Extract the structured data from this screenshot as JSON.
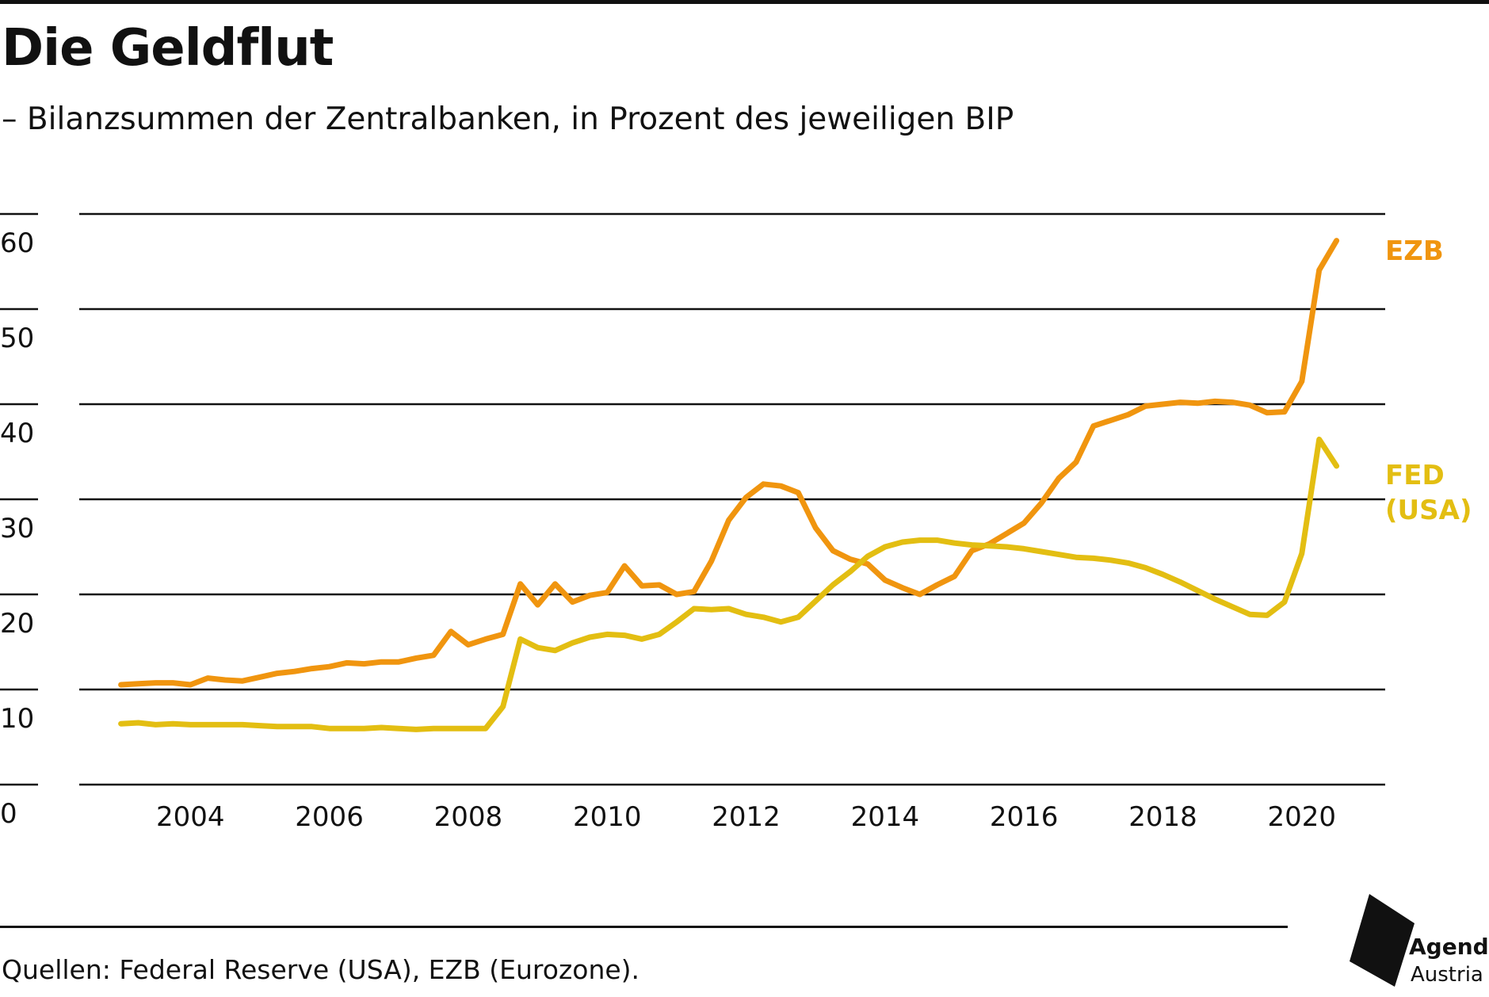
{
  "header": {
    "title": "Die Geldflut",
    "subtitle": "– Bilanzsummen der Zentralbanken, in Prozent des jeweiligen BIP"
  },
  "footer": {
    "source": "Quellen: Federal Reserve (USA), EZB (Eurozone).",
    "logo_line1": "Agenda",
    "logo_line2": "Austria"
  },
  "colors": {
    "EZB": "#F0950F",
    "FED": "#E3BE12",
    "grid": "#111111",
    "text": "#111111"
  },
  "chart_data": {
    "type": "line",
    "title": "Die Geldflut",
    "subtitle": "– Bilanzsummen der Zentralbanken, in Prozent des jeweiligen BIP",
    "xlabel": "",
    "ylabel": "",
    "xlim": [
      2002.4,
      2021.2
    ],
    "ylim": [
      0,
      60
    ],
    "grid": true,
    "y_ticks": [
      0,
      10,
      20,
      30,
      40,
      50,
      60
    ],
    "x_ticks": [
      2004,
      2006,
      2008,
      2010,
      2012,
      2014,
      2016,
      2018,
      2020
    ],
    "legend": "inline labels at line ends (right)",
    "series": [
      {
        "name": "EZB",
        "color": "#F0950F",
        "x": [
          2003.0,
          2003.25,
          2003.5,
          2003.75,
          2004.0,
          2004.25,
          2004.5,
          2004.75,
          2005.0,
          2005.25,
          2005.5,
          2005.75,
          2006.0,
          2006.25,
          2006.5,
          2006.75,
          2007.0,
          2007.25,
          2007.5,
          2007.75,
          2008.0,
          2008.25,
          2008.5,
          2008.75,
          2009.0,
          2009.25,
          2009.5,
          2009.75,
          2010.0,
          2010.25,
          2010.5,
          2010.75,
          2011.0,
          2011.25,
          2011.5,
          2011.75,
          2012.0,
          2012.25,
          2012.5,
          2012.75,
          2013.0,
          2013.25,
          2013.5,
          2013.75,
          2014.0,
          2014.25,
          2014.5,
          2014.75,
          2015.0,
          2015.25,
          2015.5,
          2015.75,
          2016.0,
          2016.25,
          2016.5,
          2016.75,
          2017.0,
          2017.25,
          2017.5,
          2017.75,
          2018.0,
          2018.25,
          2018.5,
          2018.75,
          2019.0,
          2019.25,
          2019.5,
          2019.75,
          2020.0,
          2020.25,
          2020.5
        ],
        "y": [
          10.5,
          10.6,
          10.7,
          10.7,
          10.5,
          11.2,
          11.0,
          10.9,
          11.3,
          11.7,
          11.9,
          12.2,
          12.4,
          12.8,
          12.7,
          12.9,
          12.9,
          13.3,
          13.6,
          16.1,
          14.7,
          15.3,
          15.8,
          21.1,
          18.9,
          21.1,
          19.2,
          19.9,
          20.2,
          23.0,
          20.9,
          21.0,
          20.0,
          20.3,
          23.5,
          27.8,
          30.2,
          31.6,
          31.4,
          30.7,
          27.0,
          24.6,
          23.7,
          23.2,
          21.5,
          20.7,
          20.0,
          21.0,
          21.9,
          24.6,
          25.3,
          26.4,
          27.5,
          29.6,
          32.2,
          33.9,
          37.7,
          38.3,
          38.9,
          39.8,
          40.0,
          40.2,
          40.1,
          40.3,
          40.2,
          39.9,
          39.1,
          39.2,
          42.4,
          54.1,
          57.2
        ]
      },
      {
        "name": "FED (USA)",
        "color": "#E3BE12",
        "x": [
          2003.0,
          2003.25,
          2003.5,
          2003.75,
          2004.0,
          2004.25,
          2004.5,
          2004.75,
          2005.0,
          2005.25,
          2005.5,
          2005.75,
          2006.0,
          2006.25,
          2006.5,
          2006.75,
          2007.0,
          2007.25,
          2007.5,
          2007.75,
          2008.0,
          2008.25,
          2008.5,
          2008.75,
          2009.0,
          2009.25,
          2009.5,
          2009.75,
          2010.0,
          2010.25,
          2010.5,
          2010.75,
          2011.0,
          2011.25,
          2011.5,
          2011.75,
          2012.0,
          2012.25,
          2012.5,
          2012.75,
          2013.0,
          2013.25,
          2013.5,
          2013.75,
          2014.0,
          2014.25,
          2014.5,
          2014.75,
          2015.0,
          2015.25,
          2015.5,
          2015.75,
          2016.0,
          2016.25,
          2016.5,
          2016.75,
          2017.0,
          2017.25,
          2017.5,
          2017.75,
          2018.0,
          2018.25,
          2018.5,
          2018.75,
          2019.0,
          2019.25,
          2019.5,
          2019.75,
          2020.0,
          2020.25,
          2020.5
        ],
        "y": [
          6.4,
          6.5,
          6.3,
          6.4,
          6.3,
          6.3,
          6.3,
          6.3,
          6.2,
          6.1,
          6.1,
          6.1,
          5.9,
          5.9,
          5.9,
          6.0,
          5.9,
          5.8,
          5.9,
          5.9,
          5.9,
          5.9,
          8.2,
          15.3,
          14.4,
          14.1,
          14.9,
          15.5,
          15.8,
          15.7,
          15.3,
          15.8,
          17.1,
          18.5,
          18.4,
          18.5,
          17.9,
          17.6,
          17.1,
          17.6,
          19.3,
          21.0,
          22.4,
          24.0,
          25.0,
          25.5,
          25.7,
          25.7,
          25.4,
          25.2,
          25.1,
          25.0,
          24.8,
          24.5,
          24.2,
          23.9,
          23.8,
          23.6,
          23.3,
          22.8,
          22.1,
          21.3,
          20.4,
          19.5,
          18.7,
          17.9,
          17.8,
          19.2,
          24.3,
          36.3,
          33.5
        ]
      }
    ],
    "end_labels": [
      {
        "series": "EZB",
        "lines": [
          "EZB"
        ]
      },
      {
        "series": "FED (USA)",
        "lines": [
          "FED",
          "(USA)"
        ]
      }
    ]
  }
}
